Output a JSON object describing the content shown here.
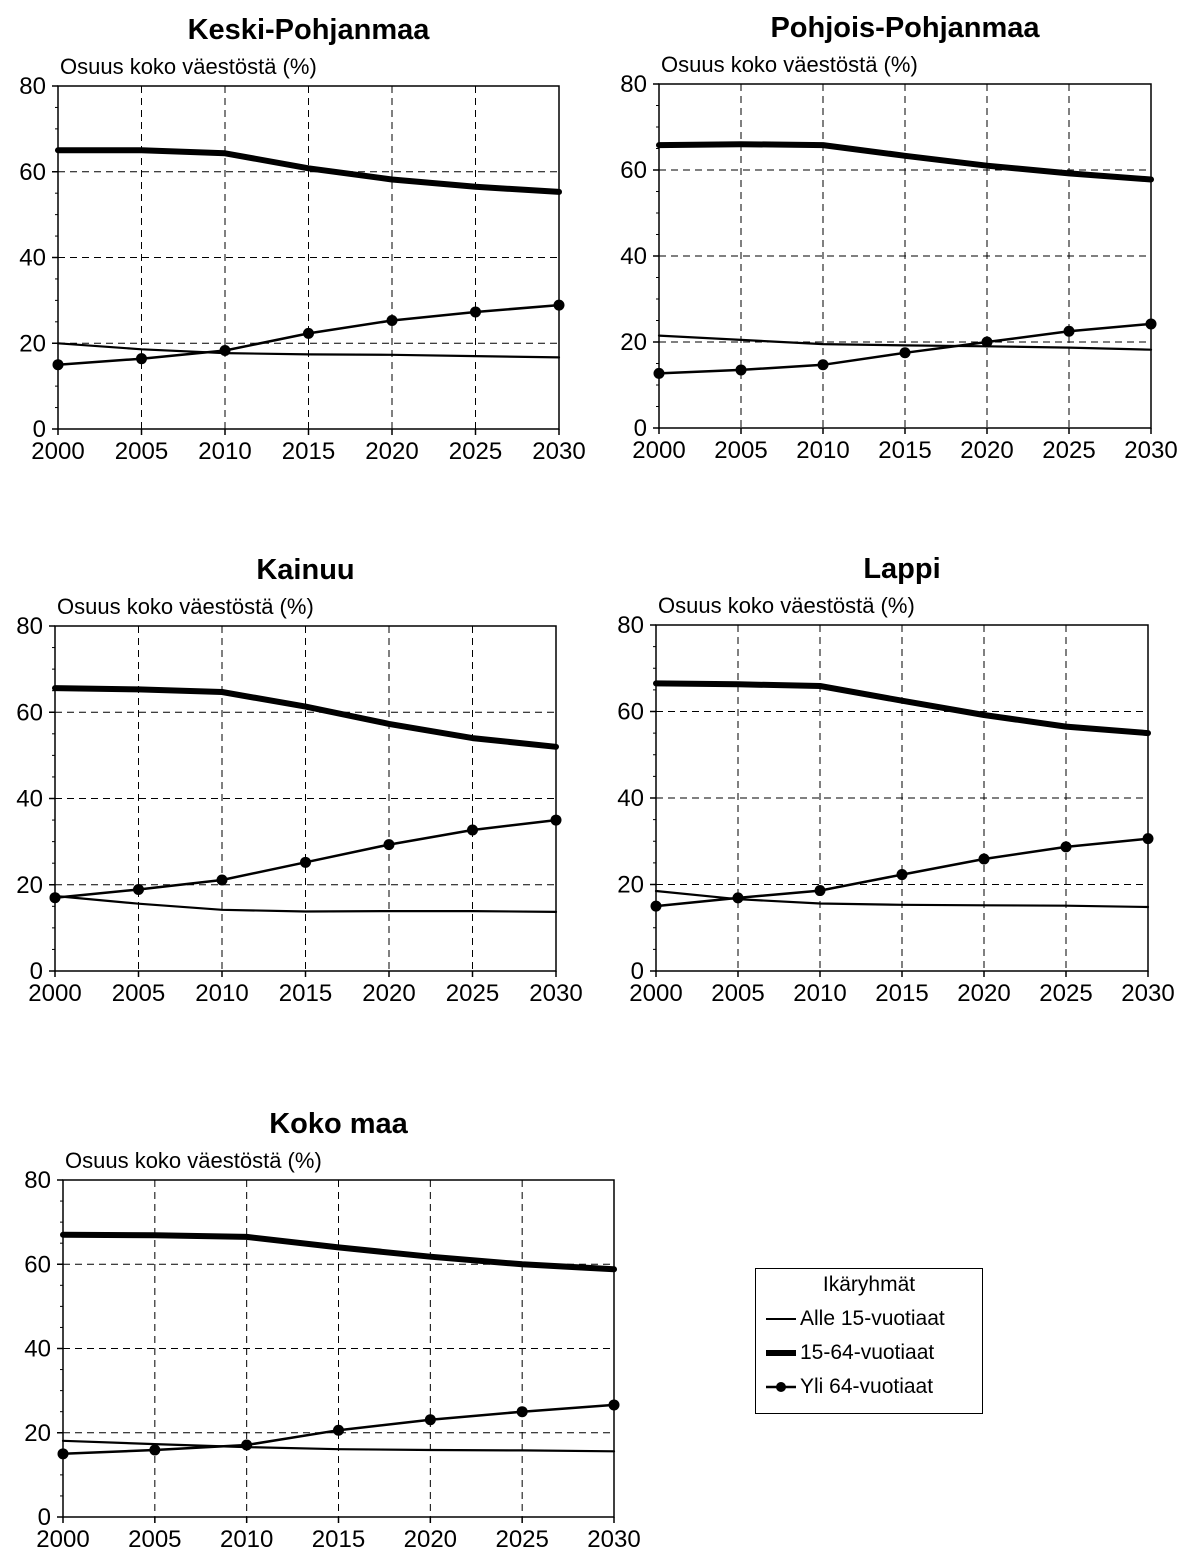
{
  "chart_data": [
    {
      "type": "line",
      "title": "Keski-Pohjanmaa",
      "ylabel": "Osuus koko väestöstä (%)",
      "xlabel": "",
      "x": [
        2000,
        2005,
        2010,
        2015,
        2020,
        2025,
        2030
      ],
      "xticks": [
        "2000",
        "2005",
        "2010",
        "2015",
        "2020",
        "2025",
        "2030"
      ],
      "yticks": [
        "0",
        "20",
        "40",
        "60",
        "80"
      ],
      "ylim": [
        0,
        80
      ],
      "grid": true,
      "series": [
        {
          "name": "Alle 15-vuotiaat",
          "values": [
            20.0,
            18.6,
            17.7,
            17.4,
            17.3,
            17.0,
            16.7
          ]
        },
        {
          "name": "15-64-vuotiaat",
          "values": [
            65.0,
            65.0,
            64.3,
            60.8,
            58.2,
            56.5,
            55.3
          ]
        },
        {
          "name": "Yli 64-vuotiaat",
          "values": [
            15.0,
            16.4,
            18.3,
            22.3,
            25.3,
            27.3,
            28.9
          ]
        }
      ]
    },
    {
      "type": "line",
      "title": "Pohjois-Pohjanmaa",
      "ylabel": "Osuus koko väestöstä (%)",
      "xlabel": "",
      "x": [
        2000,
        2005,
        2010,
        2015,
        2020,
        2025,
        2030
      ],
      "xticks": [
        "2000",
        "2005",
        "2010",
        "2015",
        "2020",
        "2025",
        "2030"
      ],
      "yticks": [
        "0",
        "20",
        "40",
        "60",
        "80"
      ],
      "ylim": [
        0,
        80
      ],
      "grid": true,
      "series": [
        {
          "name": "Alle 15-vuotiaat",
          "values": [
            21.5,
            20.5,
            19.5,
            19.2,
            19.0,
            18.7,
            18.2
          ]
        },
        {
          "name": "15-64-vuotiaat",
          "values": [
            65.8,
            66.0,
            65.8,
            63.3,
            61.0,
            59.2,
            57.8
          ]
        },
        {
          "name": "Yli 64-vuotiaat",
          "values": [
            12.7,
            13.5,
            14.7,
            17.5,
            20.0,
            22.5,
            24.2
          ]
        }
      ]
    },
    {
      "type": "line",
      "title": "Kainuu",
      "ylabel": "Osuus koko väestöstä (%)",
      "xlabel": "",
      "x": [
        2000,
        2005,
        2010,
        2015,
        2020,
        2025,
        2030
      ],
      "xticks": [
        "2000",
        "2005",
        "2010",
        "2015",
        "2020",
        "2025",
        "2030"
      ],
      "yticks": [
        "0",
        "20",
        "40",
        "60",
        "80"
      ],
      "ylim": [
        0,
        80
      ],
      "grid": true,
      "series": [
        {
          "name": "Alle 15-vuotiaat",
          "values": [
            17.4,
            15.6,
            14.2,
            13.8,
            13.9,
            13.9,
            13.7
          ]
        },
        {
          "name": "15-64-vuotiaat",
          "values": [
            65.6,
            65.3,
            64.7,
            61.3,
            57.3,
            54.0,
            52.0
          ]
        },
        {
          "name": "Yli 64-vuotiaat",
          "values": [
            17.0,
            18.9,
            21.1,
            25.2,
            29.3,
            32.7,
            35.0
          ]
        }
      ]
    },
    {
      "type": "line",
      "title": "Lappi",
      "ylabel": "Osuus koko väestöstä (%)",
      "xlabel": "",
      "x": [
        2000,
        2005,
        2010,
        2015,
        2020,
        2025,
        2030
      ],
      "xticks": [
        "2000",
        "2005",
        "2010",
        "2015",
        "2020",
        "2025",
        "2030"
      ],
      "yticks": [
        "0",
        "20",
        "40",
        "60",
        "80"
      ],
      "ylim": [
        0,
        80
      ],
      "grid": true,
      "series": [
        {
          "name": "Alle 15-vuotiaat",
          "values": [
            18.5,
            16.6,
            15.6,
            15.3,
            15.2,
            15.1,
            14.8
          ]
        },
        {
          "name": "15-64-vuotiaat",
          "values": [
            66.5,
            66.3,
            65.9,
            62.5,
            59.2,
            56.5,
            55.0
          ]
        },
        {
          "name": "Yli 64-vuotiaat",
          "values": [
            15.0,
            16.9,
            18.6,
            22.3,
            25.9,
            28.7,
            30.6
          ]
        }
      ]
    },
    {
      "type": "line",
      "title": "Koko maa",
      "ylabel": "Osuus koko väestöstä (%)",
      "xlabel": "",
      "x": [
        2000,
        2005,
        2010,
        2015,
        2020,
        2025,
        2030
      ],
      "xticks": [
        "2000",
        "2005",
        "2010",
        "2015",
        "2020",
        "2025",
        "2030"
      ],
      "yticks": [
        "0",
        "20",
        "40",
        "60",
        "80"
      ],
      "ylim": [
        0,
        80
      ],
      "grid": true,
      "series": [
        {
          "name": "Alle 15-vuotiaat",
          "values": [
            18.1,
            17.3,
            16.6,
            16.1,
            15.9,
            15.8,
            15.6
          ]
        },
        {
          "name": "15-64-vuotiaat",
          "values": [
            67.0,
            66.9,
            66.5,
            64.0,
            61.8,
            60.0,
            58.8
          ]
        },
        {
          "name": "Yli 64-vuotiaat",
          "values": [
            15.0,
            15.9,
            17.1,
            20.6,
            23.1,
            25.0,
            26.6
          ]
        }
      ]
    }
  ],
  "legend": {
    "title": "Ikäryhmät",
    "placement": "bottom-right",
    "items": [
      {
        "label": "Alle 15-vuotiaat",
        "style": "thin-line"
      },
      {
        "label": "15-64-vuotiaat",
        "style": "thick-line"
      },
      {
        "label": "Yli 64-vuotiaat",
        "style": "line-with-markers"
      }
    ]
  },
  "colors": {
    "line": "#000000",
    "grid": "#000000",
    "background": "#ffffff"
  }
}
